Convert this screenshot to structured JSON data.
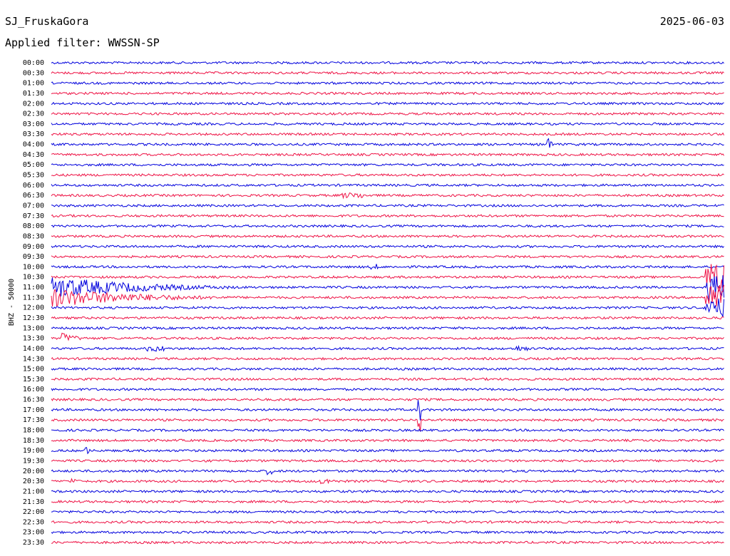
{
  "header": {
    "station": "SJ_FruskaGora",
    "date": "2025-06-03",
    "filter": "Applied filter: WWSSN-SP"
  },
  "axis_label": "BHZ - 50000",
  "rows": [
    "00:00",
    "00:30",
    "01:00",
    "01:30",
    "02:00",
    "02:30",
    "03:00",
    "03:30",
    "04:00",
    "04:30",
    "05:00",
    "05:30",
    "06:00",
    "06:30",
    "07:00",
    "07:30",
    "08:00",
    "08:30",
    "09:00",
    "09:30",
    "10:00",
    "10:30",
    "11:00",
    "11:30",
    "12:00",
    "12:30",
    "13:00",
    "13:30",
    "14:00",
    "14:30",
    "15:00",
    "15:30",
    "16:00",
    "16:30",
    "17:00",
    "17:30",
    "18:00",
    "18:30",
    "19:00",
    "19:30",
    "20:00",
    "20:30",
    "21:00",
    "21:30",
    "22:00",
    "22:30",
    "23:00",
    "23:30"
  ]
}
